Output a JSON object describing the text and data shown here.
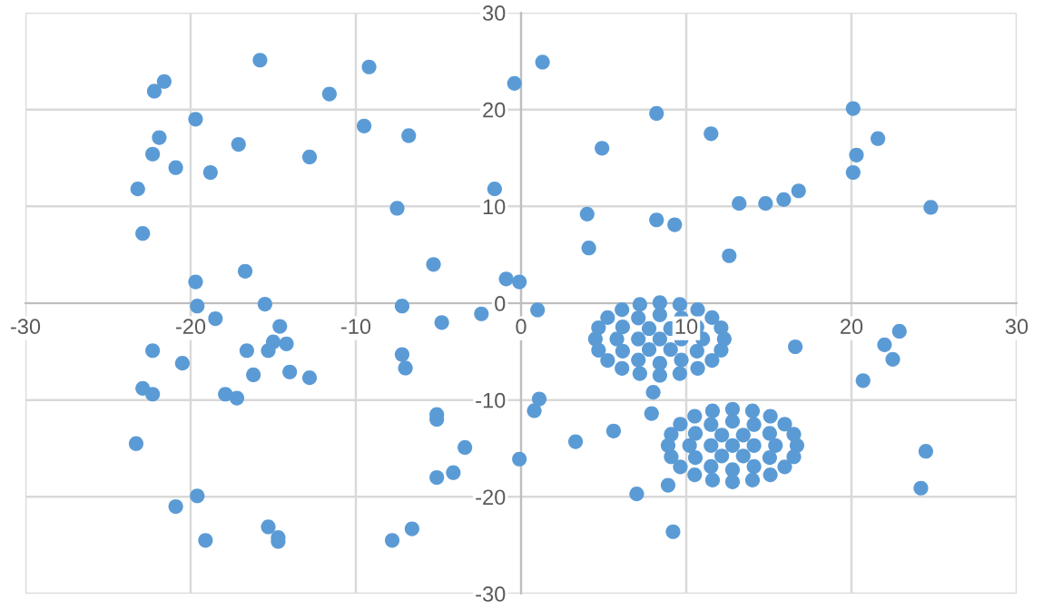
{
  "chart_data": {
    "type": "scatter",
    "marker": "circle",
    "grid": true,
    "legend": false,
    "xlim": [
      -30,
      30
    ],
    "ylim": [
      -30,
      30
    ],
    "xticks": [
      -30,
      -20,
      -10,
      0,
      10,
      20,
      30
    ],
    "yticks": [
      -30,
      -20,
      -10,
      0,
      10,
      20,
      30
    ],
    "series": [
      {
        "color": "#5b9bd5",
        "x": [
          -22.2,
          -21.6,
          -15.8,
          -9.2,
          -11.6,
          -19.7,
          -21.9,
          -22.3,
          -20.9,
          -18.8,
          -17.1,
          -12.8,
          -9.5,
          -6.8,
          -0.4,
          -23.2,
          -22.9,
          -7.5,
          -1.6,
          -5.3,
          -19.7,
          -16.7,
          -0.9,
          -0.1,
          1.3,
          8.2,
          4.9,
          11.5,
          20.1,
          21.6,
          20.3,
          20.1,
          16.8,
          15.9,
          14.8,
          13.2,
          24.8,
          4.0,
          8.2,
          9.3,
          4.1,
          12.6,
          -19.6,
          -15.5,
          -7.2,
          -18.5,
          -14.6,
          -4.8,
          -2.4,
          -22.3,
          -20.5,
          -16.6,
          -15.3,
          -15.0,
          -14.2,
          -16.2,
          -14.0,
          -12.8,
          -7.2,
          -7.0,
          -22.9,
          -22.3,
          -17.9,
          -17.2,
          -5.1,
          -5.1,
          -3.4,
          -23.3,
          -0.1,
          -5.1,
          -4.1,
          -19.6,
          -20.9,
          -15.3,
          -14.7,
          -14.7,
          -19.1,
          -7.8,
          -6.6,
          1.0,
          1.1,
          0.8,
          3.3,
          5.6,
          7.9,
          8.0,
          7.0,
          8.9,
          9.2,
          16.6,
          20.7,
          22.0,
          22.9,
          22.5,
          24.5,
          24.2,
          12.3,
          12.11,
          11.56,
          10.69,
          9.61,
          8.4,
          7.19,
          6.11,
          5.24,
          4.69,
          4.5,
          4.69,
          5.24,
          6.11,
          7.19,
          8.4,
          9.61,
          10.69,
          11.56,
          12.11,
          11.0,
          10.65,
          9.7,
          8.4,
          7.1,
          6.15,
          5.8,
          6.15,
          7.1,
          8.4,
          9.7,
          10.65,
          9.7,
          9.05,
          7.75,
          7.1,
          7.75,
          9.05,
          8.4,
          16.7,
          16.51,
          15.96,
          15.09,
          14.01,
          12.8,
          11.59,
          10.51,
          9.64,
          9.09,
          8.9,
          9.09,
          9.64,
          10.51,
          11.59,
          12.8,
          14.01,
          15.09,
          15.96,
          16.51,
          15.4,
          15.05,
          14.1,
          12.8,
          11.5,
          10.55,
          10.2,
          10.55,
          11.5,
          12.8,
          14.1,
          15.05,
          14.1,
          13.45,
          12.15,
          11.5,
          12.15,
          13.45,
          12.8
        ],
        "values": [
          21.9,
          22.9,
          25.1,
          24.4,
          21.6,
          19.0,
          17.1,
          15.4,
          14.0,
          13.5,
          16.4,
          15.1,
          18.3,
          17.3,
          22.7,
          11.8,
          7.2,
          9.8,
          11.8,
          4.0,
          2.2,
          3.3,
          2.5,
          2.2,
          24.9,
          19.6,
          16.0,
          17.5,
          20.1,
          17.0,
          15.3,
          13.5,
          11.6,
          10.7,
          10.3,
          10.3,
          9.9,
          9.2,
          8.6,
          8.1,
          5.7,
          4.9,
          -0.3,
          -0.1,
          -0.3,
          -1.6,
          -2.4,
          -2.0,
          -1.1,
          -4.9,
          -6.2,
          -4.9,
          -4.9,
          -4.0,
          -4.2,
          -7.4,
          -7.1,
          -7.7,
          -5.3,
          -6.7,
          -8.8,
          -9.4,
          -9.4,
          -9.8,
          -11.5,
          -12.0,
          -14.9,
          -14.5,
          -16.1,
          -18.0,
          -17.5,
          -19.9,
          -21.0,
          -23.1,
          -24.2,
          -24.6,
          -24.5,
          -24.5,
          -23.3,
          -0.7,
          -9.9,
          -11.1,
          -14.3,
          -13.2,
          -11.4,
          -9.2,
          -19.7,
          -18.8,
          -23.6,
          -4.5,
          -8.0,
          -4.3,
          -2.9,
          -5.8,
          -15.3,
          -19.1,
          -3.7,
          -2.54,
          -1.49,
          -0.67,
          -0.13,
          0.05,
          -0.13,
          -0.67,
          -1.49,
          -2.54,
          -3.7,
          -4.86,
          -5.91,
          -6.73,
          -7.27,
          -7.45,
          -7.27,
          -6.73,
          -5.91,
          -4.86,
          -3.7,
          -2.45,
          -1.53,
          -1.2,
          -1.53,
          -2.45,
          -3.7,
          -4.95,
          -5.87,
          -6.2,
          -5.87,
          -4.95,
          -3.7,
          -2.62,
          -2.62,
          -3.7,
          -4.78,
          -4.78,
          -3.7,
          -14.7,
          -13.54,
          -12.49,
          -11.67,
          -11.13,
          -10.95,
          -11.13,
          -11.67,
          -12.49,
          -13.54,
          -14.7,
          -15.86,
          -16.91,
          -17.73,
          -18.27,
          -18.45,
          -18.27,
          -17.73,
          -16.91,
          -15.86,
          -14.7,
          -13.45,
          -12.53,
          -12.2,
          -12.53,
          -13.45,
          -14.7,
          -15.95,
          -16.87,
          -17.2,
          -16.87,
          -15.95,
          -14.7,
          -13.62,
          -13.62,
          -14.7,
          -15.78,
          -15.78,
          -14.7
        ]
      }
    ]
  }
}
